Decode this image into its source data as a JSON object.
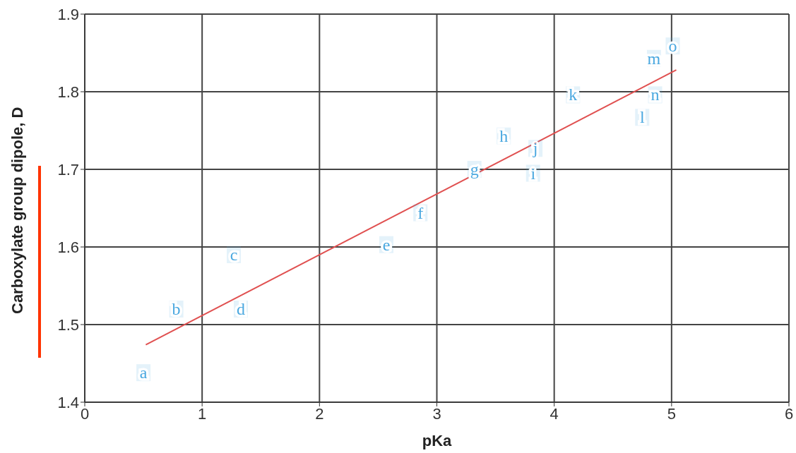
{
  "chart_data": {
    "type": "scatter",
    "xlabel": "pKa",
    "ylabel": "Carboxylate group dipole, D",
    "xlim": [
      0,
      6
    ],
    "xticks": [
      0,
      1,
      2,
      3,
      4,
      5,
      6
    ],
    "ylim": [
      1.4,
      1.9
    ],
    "yticks": [
      1.4,
      1.5,
      1.6,
      1.7,
      1.8,
      1.9
    ],
    "grid": true,
    "series": [
      {
        "type": "scatter",
        "color": "#4aa8e0",
        "x": [
          0.5,
          0.78,
          1.27,
          1.33,
          2.57,
          2.86,
          3.32,
          3.57,
          3.82,
          3.84,
          4.16,
          4.75,
          4.85,
          4.86,
          5.01
        ],
        "values": [
          1.438,
          1.52,
          1.59,
          1.52,
          1.603,
          1.644,
          1.7,
          1.743,
          1.695,
          1.727,
          1.796,
          1.767,
          1.843,
          1.796,
          1.859
        ],
        "value_labels": [
          "a",
          "b",
          "c",
          "d",
          "e",
          "f",
          "g",
          "h",
          "i",
          "j",
          "k",
          "l",
          "m",
          "n",
          "o"
        ]
      },
      {
        "type": "line",
        "color": "#e05050",
        "x": [
          0.52,
          5.04
        ],
        "values": [
          1.474,
          1.828
        ]
      }
    ]
  }
}
